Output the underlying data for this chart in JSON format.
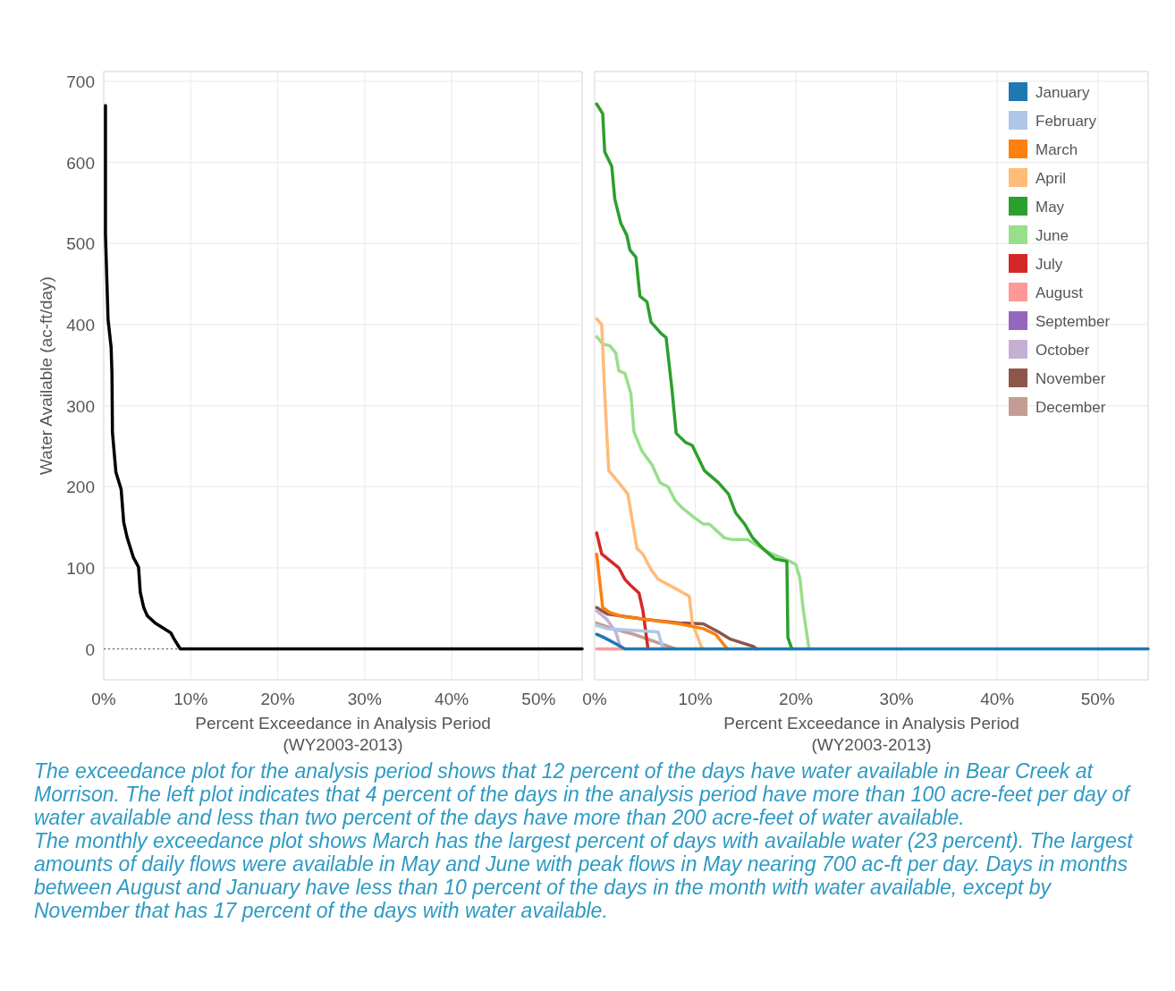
{
  "chart_data": [
    {
      "type": "line",
      "xlabel": "Percent Exceedance in Analysis Period\n(WY2003-2013)",
      "ylabel": "Water Available (ac-ft/day)",
      "xlim": [
        0,
        55
      ],
      "xticks": [
        {
          "value": 0,
          "label": "0%"
        },
        {
          "value": 10,
          "label": "10%"
        },
        {
          "value": 20,
          "label": "20%"
        },
        {
          "value": 30,
          "label": "30%"
        },
        {
          "value": 40,
          "label": "40%"
        },
        {
          "value": 50,
          "label": "50%"
        }
      ],
      "ylim": [
        -38,
        712
      ],
      "yticks": [
        0,
        100,
        200,
        300,
        400,
        500,
        600,
        700
      ],
      "grid": true,
      "line_style": "solid",
      "ref_lines": [
        {
          "axis": "y",
          "value": 0,
          "color": "#555555",
          "line_style": "dotted"
        }
      ],
      "series": [
        {
          "color": "#000000",
          "x": [
            0.2,
            0.2,
            0.5,
            0.85,
            0.95,
            1.0,
            1.4,
            2.0,
            2.3,
            2.7,
            3.4,
            4.0,
            4.2,
            4.6,
            5.0,
            5.9,
            7.7,
            8.1,
            8.8,
            55
          ],
          "values": [
            670,
            511,
            406,
            372,
            338,
            267,
            218,
            197,
            156,
            137,
            113,
            101,
            70,
            51,
            41,
            32,
            20,
            12,
            0,
            0
          ]
        }
      ],
      "annotations": [
        "The exceedance plot for the analysis period shows that 12 percent of the days have water available in Bear Creek at Morrison. The left plot indicates that 4 percent of the days in the analysis period have more than 100 acre-feet per day of water available and less than two percent of the days have more than 200 acre-feet of water available.",
        "The monthly exceedance plot shows March has the largest percent of days with available water (23 percent).  The largest amounts of daily flows were available in May and June with peak flows in May nearing 700 ac-ft per day.  Days in months between August and January have less than 10 percent of the days in the month with water available, except by November that has 17 percent of the days with water available."
      ]
    },
    {
      "type": "line",
      "xlabel": "Percent Exceedance in Analysis Period\n(WY2003-2013)",
      "xlim": [
        0,
        55
      ],
      "xticks": [
        {
          "value": 0,
          "label": "0%"
        },
        {
          "value": 10,
          "label": "10%"
        },
        {
          "value": 20,
          "label": "20%"
        },
        {
          "value": 30,
          "label": "30%"
        },
        {
          "value": 40,
          "label": "40%"
        },
        {
          "value": 50,
          "label": "50%"
        }
      ],
      "ylim": [
        -38,
        712
      ],
      "yticks": [
        0,
        100,
        200,
        300,
        400,
        500,
        600,
        700
      ],
      "tick_labels": "x",
      "grid": true,
      "legend": "top right",
      "line_style": "solid",
      "series": [
        {
          "name": "January",
          "color": "#1f77b4",
          "x": [
            0.2,
            0.95,
            2.3,
            3.0,
            55
          ],
          "values": [
            18,
            14,
            5,
            0,
            0
          ]
        },
        {
          "name": "February",
          "color": "#aec7e8",
          "x": [
            0.2,
            1.25,
            6.3,
            6.8
          ],
          "values": [
            29,
            25,
            21,
            0
          ]
        },
        {
          "name": "March",
          "color": "#ff7f0e",
          "x": [
            0.2,
            0.8,
            1.5,
            2.7,
            5.4,
            8.4,
            10.8,
            12.0,
            13.2
          ],
          "values": [
            117,
            51,
            45,
            40,
            36,
            31,
            25,
            18,
            0
          ]
        },
        {
          "name": "April",
          "color": "#ffbb78",
          "x": [
            0.2,
            0.7,
            1.0,
            1.4,
            2.4,
            3.3,
            4.2,
            4.8,
            5.6,
            6.3,
            7.8,
            9.4,
            9.7,
            10.6,
            10.8
          ],
          "values": [
            407,
            400,
            315,
            220,
            205,
            191,
            124,
            117,
            98,
            86,
            76,
            65,
            32,
            3,
            0
          ]
        },
        {
          "name": "May",
          "color": "#2ca02c",
          "x": [
            0.2,
            0.8,
            1.0,
            1.7,
            2.0,
            2.6,
            3.2,
            3.5,
            4.1,
            4.5,
            5.2,
            5.6,
            6.6,
            7.1,
            7.7,
            8.1,
            9.0,
            9.7,
            10.2,
            10.9,
            12.3,
            13.3,
            14.0,
            14.9,
            15.7,
            16.7,
            17.9,
            19.1,
            19.2,
            19.6
          ],
          "values": [
            672,
            660,
            613,
            595,
            555,
            525,
            510,
            492,
            483,
            435,
            428,
            403,
            389,
            384,
            318,
            266,
            255,
            251,
            238,
            220,
            205,
            191,
            168,
            154,
            137,
            124,
            111,
            108,
            14,
            0
          ]
        },
        {
          "name": "June",
          "color": "#98df8a",
          "x": [
            0.2,
            0.8,
            1.5,
            2.1,
            2.4,
            3.0,
            3.6,
            3.9,
            4.7,
            5.7,
            6.5,
            7.3,
            8.0,
            8.7,
            10.0,
            10.8,
            11.4,
            12.9,
            13.6,
            15.2,
            17.3,
            19.4,
            20.0,
            20.4,
            20.7,
            21.3
          ],
          "values": [
            385,
            376,
            374,
            365,
            343,
            340,
            315,
            268,
            244,
            227,
            205,
            200,
            183,
            174,
            161,
            154,
            154,
            137,
            135,
            135,
            119,
            108,
            104,
            87,
            51,
            0
          ]
        },
        {
          "name": "July",
          "color": "#d62728",
          "x": [
            0.2,
            0.7,
            1.5,
            2.4,
            3.0,
            3.6,
            4.4,
            4.8,
            5.3
          ],
          "values": [
            143,
            117,
            109,
            100,
            86,
            78,
            69,
            47,
            0
          ]
        },
        {
          "name": "August",
          "color": "#ff9896",
          "x": [
            0.2,
            2.9
          ],
          "values": [
            0,
            0
          ]
        },
        {
          "name": "September",
          "color": "#9467bd"
        },
        {
          "name": "October",
          "color": "#c5b0d5",
          "x": [
            0.2,
            1.25,
            2.1,
            2.6
          ],
          "values": [
            47,
            36,
            21,
            0
          ]
        },
        {
          "name": "November",
          "color": "#8c564b",
          "x": [
            0.2,
            1.25,
            5.4,
            8.4,
            10.8,
            12.3,
            13.5,
            15.8,
            16.1
          ],
          "values": [
            51,
            43,
            36,
            32,
            31,
            21,
            12,
            3,
            0
          ]
        },
        {
          "name": "December",
          "color": "#c49c94",
          "x": [
            0.2,
            1.8,
            3.9,
            6.9,
            8.1
          ],
          "values": [
            32,
            25,
            18,
            5,
            0
          ]
        }
      ]
    }
  ]
}
